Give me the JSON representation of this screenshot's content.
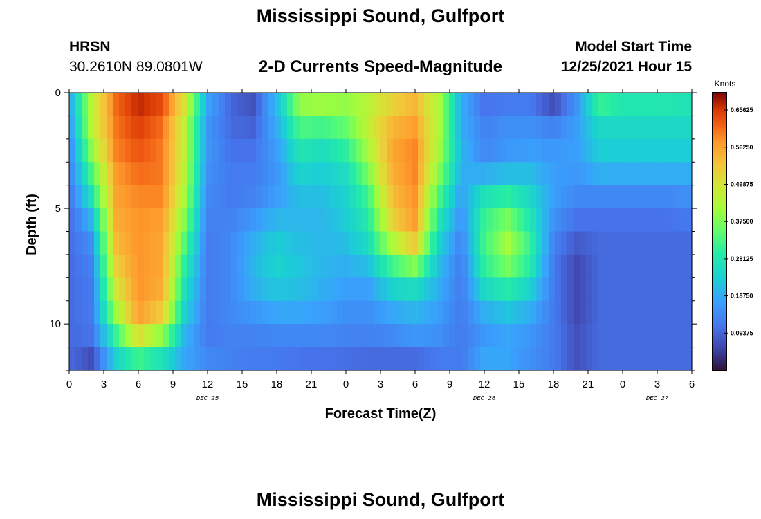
{
  "header": {
    "title": "Mississippi Sound, Gulfport",
    "station_code": "HRSN",
    "station_coords": "30.2610N  89.0801W",
    "subtitle": "2-D Currents Speed-Magnitude",
    "model_label": "Model Start Time",
    "model_time": "12/25/2021 Hour 15"
  },
  "footer": {
    "title_repeat": "Mississippi Sound, Gulfport"
  },
  "chart_data": {
    "type": "heatmap",
    "xlabel": "Forecast Time(Z)",
    "ylabel": "Depth (ft)",
    "x_ticks": [
      "0",
      "3",
      "6",
      "9",
      "12",
      "15",
      "18",
      "21",
      "0",
      "3",
      "6",
      "9",
      "12",
      "15",
      "18",
      "21",
      "0",
      "3",
      "6"
    ],
    "date_labels": [
      {
        "text": "DEC 25",
        "hour": 12
      },
      {
        "text": "DEC 26",
        "hour": 36
      },
      {
        "text": "DEC 27",
        "hour": 51
      }
    ],
    "y_ticks": [
      "0",
      "5",
      "10"
    ],
    "xlim": [
      0,
      54
    ],
    "ylim_depth_ft": [
      0,
      12
    ],
    "colorbar": {
      "unit": "Knots",
      "range": [
        0,
        0.7
      ],
      "tick_labels": [
        "0.65625",
        "0.56250",
        "0.46875",
        "0.37500",
        "0.28125",
        "0.18750",
        "0.09375"
      ],
      "colorscale": "turbo"
    },
    "depth_rows_ft": [
      0,
      1,
      2,
      3,
      4,
      5,
      6,
      7,
      8,
      9,
      10,
      11,
      12
    ],
    "time_hours": [
      0,
      2,
      4,
      6,
      8,
      10,
      12,
      14,
      16,
      18,
      20,
      22,
      24,
      26,
      28,
      30,
      32,
      34,
      36,
      38,
      40,
      42,
      44,
      46,
      48,
      50,
      52,
      54
    ],
    "speed_knots": [
      [
        0.18,
        0.42,
        0.62,
        0.68,
        0.66,
        0.5,
        0.2,
        0.09,
        0.06,
        0.22,
        0.42,
        0.44,
        0.4,
        0.4,
        0.48,
        0.52,
        0.42,
        0.2,
        0.1,
        0.1,
        0.1,
        0.03,
        0.15,
        0.36,
        0.3,
        0.3,
        0.3,
        0.28
      ],
      [
        0.16,
        0.44,
        0.6,
        0.66,
        0.62,
        0.44,
        0.16,
        0.1,
        0.08,
        0.2,
        0.36,
        0.36,
        0.38,
        0.46,
        0.52,
        0.56,
        0.42,
        0.18,
        0.12,
        0.14,
        0.14,
        0.1,
        0.16,
        0.26,
        0.26,
        0.26,
        0.26,
        0.26
      ],
      [
        0.14,
        0.42,
        0.6,
        0.64,
        0.6,
        0.44,
        0.16,
        0.1,
        0.1,
        0.18,
        0.3,
        0.28,
        0.32,
        0.42,
        0.56,
        0.58,
        0.42,
        0.2,
        0.14,
        0.16,
        0.16,
        0.16,
        0.18,
        0.24,
        0.24,
        0.24,
        0.24,
        0.24
      ],
      [
        0.12,
        0.36,
        0.58,
        0.62,
        0.6,
        0.44,
        0.16,
        0.12,
        0.12,
        0.16,
        0.26,
        0.24,
        0.28,
        0.4,
        0.56,
        0.6,
        0.4,
        0.2,
        0.14,
        0.16,
        0.18,
        0.16,
        0.16,
        0.22,
        0.22,
        0.22,
        0.22,
        0.22
      ],
      [
        0.12,
        0.3,
        0.56,
        0.6,
        0.6,
        0.42,
        0.14,
        0.12,
        0.12,
        0.16,
        0.22,
        0.22,
        0.24,
        0.34,
        0.54,
        0.58,
        0.36,
        0.18,
        0.24,
        0.26,
        0.24,
        0.18,
        0.16,
        0.16,
        0.16,
        0.16,
        0.16,
        0.16
      ],
      [
        0.1,
        0.24,
        0.56,
        0.58,
        0.58,
        0.4,
        0.14,
        0.12,
        0.14,
        0.18,
        0.2,
        0.2,
        0.24,
        0.3,
        0.52,
        0.58,
        0.3,
        0.16,
        0.3,
        0.34,
        0.26,
        0.16,
        0.12,
        0.12,
        0.12,
        0.12,
        0.12,
        0.14
      ],
      [
        0.1,
        0.16,
        0.54,
        0.58,
        0.56,
        0.36,
        0.12,
        0.14,
        0.18,
        0.22,
        0.2,
        0.2,
        0.22,
        0.28,
        0.48,
        0.56,
        0.26,
        0.14,
        0.32,
        0.4,
        0.3,
        0.14,
        0.1,
        0.1,
        0.1,
        0.1,
        0.1,
        0.1
      ],
      [
        0.1,
        0.14,
        0.52,
        0.58,
        0.56,
        0.32,
        0.12,
        0.14,
        0.2,
        0.24,
        0.22,
        0.2,
        0.2,
        0.24,
        0.36,
        0.46,
        0.22,
        0.12,
        0.32,
        0.42,
        0.32,
        0.12,
        0.06,
        0.1,
        0.1,
        0.1,
        0.1,
        0.1
      ],
      [
        0.1,
        0.12,
        0.48,
        0.58,
        0.56,
        0.28,
        0.12,
        0.14,
        0.2,
        0.24,
        0.22,
        0.2,
        0.18,
        0.18,
        0.28,
        0.3,
        0.2,
        0.12,
        0.28,
        0.32,
        0.26,
        0.12,
        0.06,
        0.1,
        0.1,
        0.1,
        0.1,
        0.1
      ],
      [
        0.1,
        0.12,
        0.44,
        0.58,
        0.54,
        0.26,
        0.12,
        0.14,
        0.18,
        0.2,
        0.2,
        0.18,
        0.16,
        0.16,
        0.2,
        0.22,
        0.18,
        0.12,
        0.22,
        0.26,
        0.22,
        0.12,
        0.06,
        0.1,
        0.1,
        0.1,
        0.1,
        0.1
      ],
      [
        0.1,
        0.12,
        0.36,
        0.56,
        0.48,
        0.22,
        0.12,
        0.14,
        0.14,
        0.16,
        0.16,
        0.16,
        0.14,
        0.14,
        0.16,
        0.18,
        0.16,
        0.12,
        0.16,
        0.18,
        0.16,
        0.12,
        0.06,
        0.1,
        0.1,
        0.1,
        0.1,
        0.1
      ],
      [
        0.1,
        0.1,
        0.26,
        0.4,
        0.3,
        0.18,
        0.12,
        0.12,
        0.12,
        0.12,
        0.12,
        0.12,
        0.12,
        0.12,
        0.12,
        0.14,
        0.14,
        0.12,
        0.16,
        0.18,
        0.16,
        0.12,
        0.08,
        0.1,
        0.1,
        0.1,
        0.1,
        0.1
      ],
      [
        0.1,
        0.03,
        0.22,
        0.24,
        0.24,
        0.18,
        0.16,
        0.14,
        0.12,
        0.12,
        0.1,
        0.1,
        0.09,
        0.08,
        0.08,
        0.06,
        0.1,
        0.12,
        0.2,
        0.18,
        0.14,
        0.12,
        0.06,
        0.1,
        0.1,
        0.1,
        0.1,
        0.1
      ]
    ]
  }
}
